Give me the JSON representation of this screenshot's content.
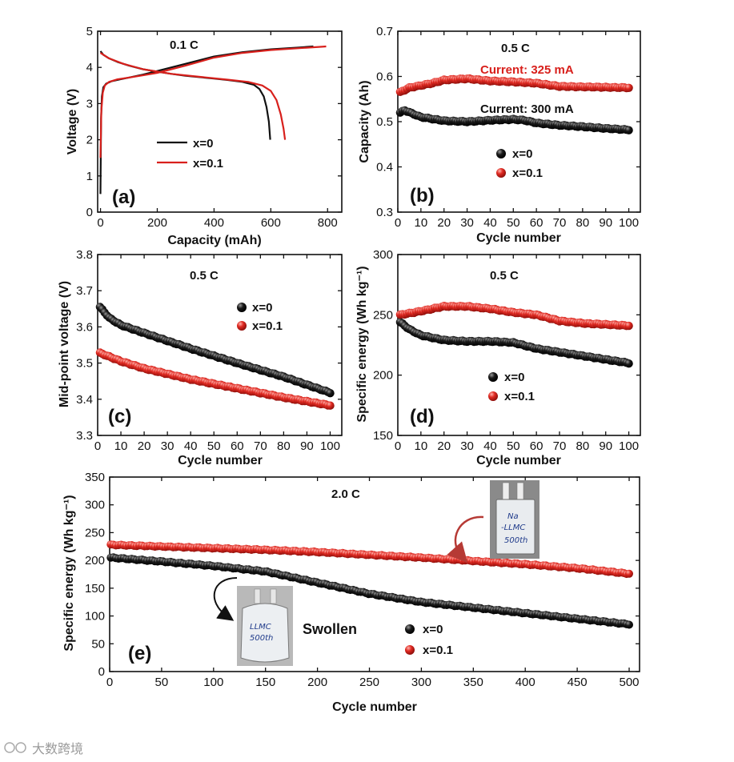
{
  "figure": {
    "watermark": "大数跨境"
  },
  "colors": {
    "x0": "#111111",
    "x01": "#d8201c",
    "red_text": "#d8201c",
    "arrow": "#b63a35"
  },
  "legend": {
    "x0": "x=0",
    "x01": "x=0.1"
  },
  "chart_data": [
    {
      "id": "a",
      "type": "line",
      "panel_label": "(a)",
      "rate": "0.1 C",
      "title": "",
      "xlabel": "Capacity (mAh)",
      "ylabel": "Voltage (V)",
      "xlim": [
        -10,
        850
      ],
      "ylim": [
        0,
        5
      ],
      "xticks": [
        0,
        200,
        400,
        600,
        800
      ],
      "yticks": [
        0,
        1,
        2,
        3,
        4,
        5
      ],
      "series": [
        {
          "name": "x=0",
          "color": "#111111",
          "segments": [
            {
              "label": "charge",
              "x": [
                0,
                2,
                5,
                10,
                20,
                40,
                70,
                100,
                150,
                200,
                300,
                400,
                500,
                600,
                700,
                750
              ],
              "y": [
                0.5,
                2.6,
                3.2,
                3.45,
                3.55,
                3.62,
                3.67,
                3.72,
                3.8,
                3.9,
                4.1,
                4.3,
                4.42,
                4.5,
                4.55,
                4.58
              ]
            },
            {
              "label": "discharge",
              "x": [
                0,
                10,
                30,
                60,
                100,
                150,
                200,
                250,
                300,
                350,
                400,
                450,
                500,
                540,
                560,
                575,
                585,
                593,
                598
              ],
              "y": [
                4.45,
                4.35,
                4.25,
                4.15,
                4.05,
                3.95,
                3.88,
                3.82,
                3.77,
                3.73,
                3.69,
                3.65,
                3.6,
                3.52,
                3.4,
                3.2,
                2.9,
                2.5,
                2.0
              ]
            }
          ]
        },
        {
          "name": "x=0.1",
          "color": "#d8201c",
          "segments": [
            {
              "label": "charge",
              "x": [
                0,
                3,
                8,
                15,
                30,
                60,
                100,
                150,
                200,
                300,
                400,
                500,
                600,
                700,
                780,
                795
              ],
              "y": [
                1.5,
                2.8,
                3.3,
                3.5,
                3.6,
                3.67,
                3.72,
                3.78,
                3.85,
                4.05,
                4.27,
                4.4,
                4.48,
                4.53,
                4.57,
                4.58
              ]
            },
            {
              "label": "discharge",
              "x": [
                0,
                30,
                80,
                150,
                250,
                350,
                450,
                520,
                570,
                600,
                620,
                635,
                645,
                650
              ],
              "y": [
                4.4,
                4.25,
                4.1,
                3.95,
                3.82,
                3.74,
                3.66,
                3.6,
                3.5,
                3.35,
                3.1,
                2.7,
                2.3,
                2.0
              ]
            }
          ]
        }
      ]
    },
    {
      "id": "b",
      "type": "scatter",
      "panel_label": "(b)",
      "rate": "0.5 C",
      "title": "",
      "xlabel": "Cycle number",
      "ylabel": "Capacity (Ah)",
      "xlim": [
        0,
        105
      ],
      "ylim": [
        0.3,
        0.7
      ],
      "xticks": [
        0,
        10,
        20,
        30,
        40,
        50,
        60,
        70,
        80,
        90,
        100
      ],
      "yticks": [
        0.3,
        0.4,
        0.5,
        0.6,
        0.7
      ],
      "annotations": [
        {
          "text": "Current: 325 mA",
          "color": "#d8201c",
          "at": [
            36.5,
            0.614
          ]
        },
        {
          "text": "Current: 300 mA",
          "color": "#111111",
          "at": [
            36.5,
            0.53
          ]
        }
      ],
      "series": [
        {
          "name": "x=0",
          "color": "#111111",
          "n": 100,
          "knots": [
            [
              1,
              0.52
            ],
            [
              3,
              0.525
            ],
            [
              10,
              0.51
            ],
            [
              20,
              0.502
            ],
            [
              30,
              0.5
            ],
            [
              40,
              0.503
            ],
            [
              50,
              0.505
            ],
            [
              55,
              0.503
            ],
            [
              60,
              0.497
            ],
            [
              70,
              0.492
            ],
            [
              80,
              0.489
            ],
            [
              90,
              0.485
            ],
            [
              100,
              0.482
            ]
          ]
        },
        {
          "name": "x=0.1",
          "color": "#d8201c",
          "n": 100,
          "knots": [
            [
              1,
              0.565
            ],
            [
              5,
              0.575
            ],
            [
              15,
              0.585
            ],
            [
              20,
              0.592
            ],
            [
              30,
              0.595
            ],
            [
              40,
              0.59
            ],
            [
              50,
              0.588
            ],
            [
              60,
              0.585
            ],
            [
              70,
              0.578
            ],
            [
              80,
              0.577
            ],
            [
              90,
              0.576
            ],
            [
              100,
              0.575
            ]
          ]
        }
      ]
    },
    {
      "id": "c",
      "type": "scatter",
      "panel_label": "(c)",
      "rate": "0.5 C",
      "title": "",
      "xlabel": "Cycle number",
      "ylabel": "Mid-point voltage (V)",
      "xlim": [
        0,
        105
      ],
      "ylim": [
        3.3,
        3.8
      ],
      "xticks": [
        0,
        10,
        20,
        30,
        40,
        50,
        60,
        70,
        80,
        90,
        100
      ],
      "yticks": [
        3.3,
        3.4,
        3.5,
        3.6,
        3.7,
        3.8
      ],
      "series": [
        {
          "name": "x=0",
          "color": "#111111",
          "n": 100,
          "knots": [
            [
              1,
              3.655
            ],
            [
              5,
              3.625
            ],
            [
              10,
              3.605
            ],
            [
              20,
              3.583
            ],
            [
              40,
              3.54
            ],
            [
              60,
              3.5
            ],
            [
              80,
              3.462
            ],
            [
              100,
              3.418
            ]
          ]
        },
        {
          "name": "x=0.1",
          "color": "#d8201c",
          "n": 100,
          "knots": [
            [
              1,
              3.528
            ],
            [
              10,
              3.505
            ],
            [
              20,
              3.485
            ],
            [
              40,
              3.455
            ],
            [
              60,
              3.43
            ],
            [
              80,
              3.405
            ],
            [
              100,
              3.383
            ]
          ]
        }
      ]
    },
    {
      "id": "d",
      "type": "scatter",
      "panel_label": "(d)",
      "rate": "0.5 C",
      "title": "",
      "xlabel": "Cycle number",
      "ylabel": "Specific energy (Wh kg⁻¹)",
      "xlim": [
        0,
        105
      ],
      "ylim": [
        150,
        300
      ],
      "xticks": [
        0,
        10,
        20,
        30,
        40,
        50,
        60,
        70,
        80,
        90,
        100
      ],
      "yticks": [
        150,
        200,
        250,
        300
      ],
      "series": [
        {
          "name": "x=0",
          "color": "#111111",
          "n": 100,
          "knots": [
            [
              1,
              244
            ],
            [
              5,
              238
            ],
            [
              10,
              233
            ],
            [
              20,
              229
            ],
            [
              30,
              228
            ],
            [
              40,
              228
            ],
            [
              50,
              227
            ],
            [
              60,
              222
            ],
            [
              70,
              219
            ],
            [
              80,
              216
            ],
            [
              90,
              213
            ],
            [
              100,
              210
            ]
          ]
        },
        {
          "name": "x=0.1",
          "color": "#d8201c",
          "n": 100,
          "knots": [
            [
              1,
              250
            ],
            [
              10,
              253
            ],
            [
              20,
              257
            ],
            [
              30,
              257
            ],
            [
              40,
              255
            ],
            [
              50,
              252
            ],
            [
              60,
              250
            ],
            [
              70,
              245
            ],
            [
              80,
              243
            ],
            [
              90,
              242
            ],
            [
              100,
              241
            ]
          ]
        }
      ]
    },
    {
      "id": "e",
      "type": "scatter",
      "panel_label": "(e)",
      "rate": "2.0 C",
      "title": "",
      "xlabel": "Cycle number",
      "ylabel": "Specific energy (Wh kg⁻¹)",
      "xlim": [
        0,
        510
      ],
      "ylim": [
        0,
        350
      ],
      "xticks": [
        0,
        50,
        100,
        150,
        200,
        250,
        300,
        350,
        400,
        450,
        500
      ],
      "yticks": [
        0,
        50,
        100,
        150,
        200,
        250,
        300,
        350
      ],
      "annotations": [
        {
          "text": "Swollen",
          "color": "#111111",
          "at": [
            215,
            80
          ]
        }
      ],
      "photos": [
        {
          "label_lines": [
            "LLMC",
            "500th"
          ],
          "near_cycle": 150,
          "state": "swollen"
        },
        {
          "label_lines": [
            "Na",
            "-LLMC",
            "500th"
          ],
          "near_cycle": 390,
          "state": "normal"
        }
      ],
      "series": [
        {
          "name": "x=0",
          "color": "#111111",
          "n": 200,
          "knots": [
            [
              1,
              205
            ],
            [
              50,
              198
            ],
            [
              100,
              190
            ],
            [
              150,
              180
            ],
            [
              200,
              160
            ],
            [
              250,
              140
            ],
            [
              300,
              125
            ],
            [
              350,
              115
            ],
            [
              400,
              105
            ],
            [
              450,
              95
            ],
            [
              500,
              85
            ]
          ]
        },
        {
          "name": "x=0.1",
          "color": "#d8201c",
          "n": 200,
          "knots": [
            [
              1,
              228
            ],
            [
              50,
              225
            ],
            [
              100,
              222
            ],
            [
              150,
              219
            ],
            [
              200,
              215
            ],
            [
              250,
              210
            ],
            [
              300,
              205
            ],
            [
              350,
              199
            ],
            [
              400,
              193
            ],
            [
              450,
              186
            ],
            [
              480,
              180
            ],
            [
              500,
              176
            ]
          ]
        }
      ]
    }
  ]
}
